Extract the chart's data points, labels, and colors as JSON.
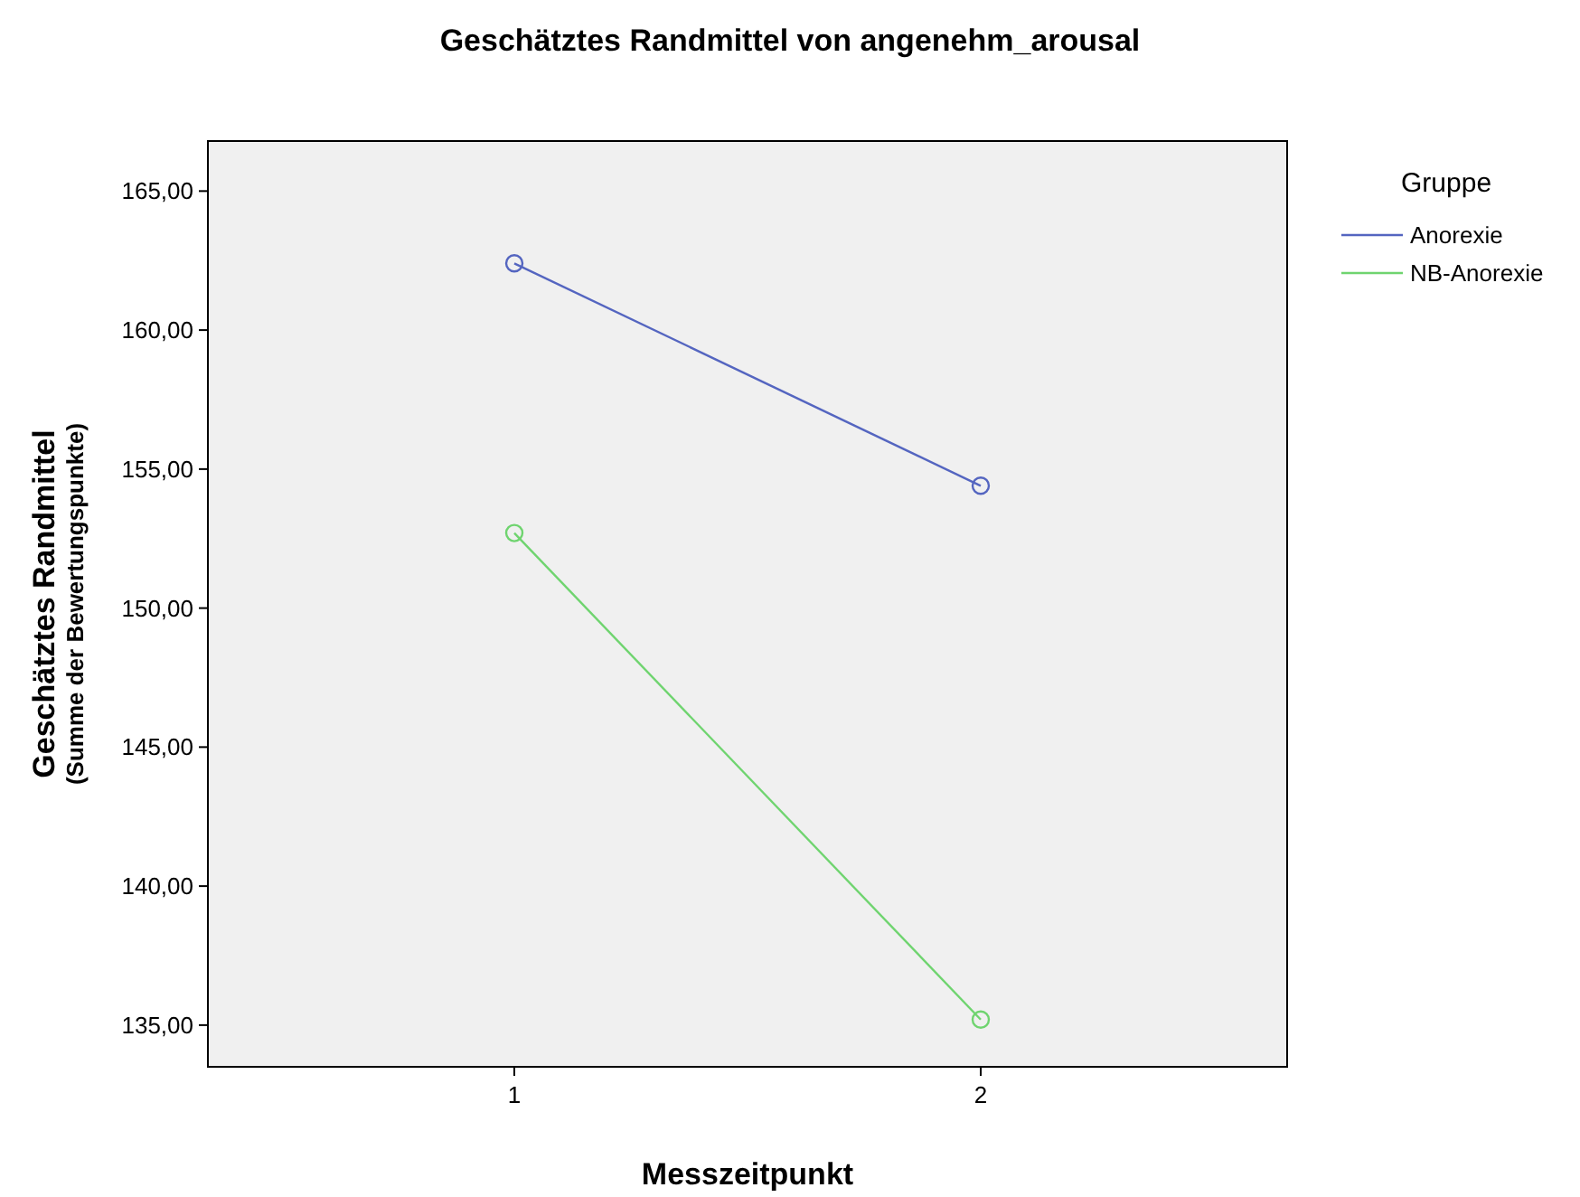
{
  "chart_data": {
    "type": "line",
    "title": "Geschätztes Randmittel von angenehm_arousal",
    "xlabel": "Messzeitpunkt",
    "ylabel": "Geschätztes Randmittel\n(Summe der Bewertungspunkte)",
    "legend_title": "Gruppe",
    "categories": [
      "1",
      "2"
    ],
    "series": [
      {
        "name": "Anorexie",
        "color": "#5465c0",
        "values": [
          162.4,
          154.4
        ]
      },
      {
        "name": "NB-Anorexie",
        "color": "#6fd46f",
        "values": [
          152.7,
          135.2
        ]
      }
    ],
    "ylim": [
      133.5,
      166.8
    ],
    "yticks": [
      {
        "value": 135,
        "label": "135,00"
      },
      {
        "value": 140,
        "label": "140,00"
      },
      {
        "value": 145,
        "label": "145,00"
      },
      {
        "value": 150,
        "label": "150,00"
      },
      {
        "value": 155,
        "label": "155,00"
      },
      {
        "value": 160,
        "label": "160,00"
      },
      {
        "value": 165,
        "label": "165,00"
      }
    ],
    "grid": false,
    "legend": "right",
    "marker": "circle",
    "line_style": "solid"
  }
}
